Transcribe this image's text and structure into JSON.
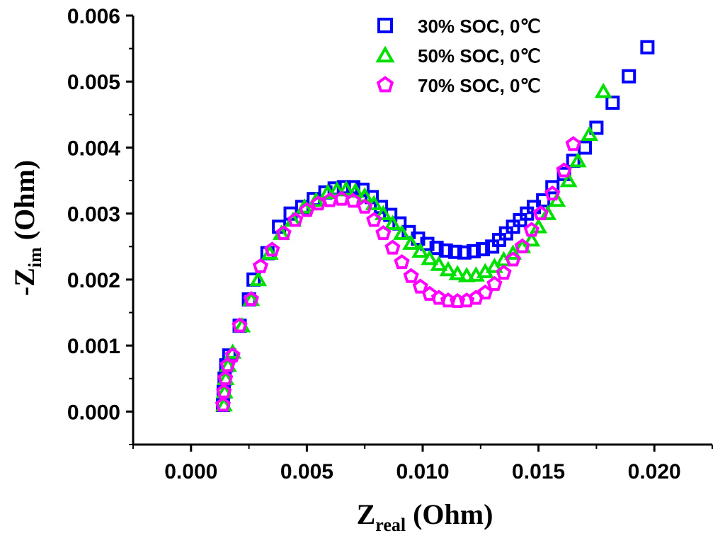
{
  "chart_data": {
    "type": "scatter",
    "title": "",
    "xlabel": {
      "main": "Z",
      "sub": "real",
      "unit": " (Ohm)"
    },
    "ylabel": {
      "prefix": "-Z",
      "sub": "im",
      "unit": " (Ohm)"
    },
    "xlim": [
      -0.0025,
      0.0225
    ],
    "ylim": [
      -0.0005,
      0.006
    ],
    "xticks": [
      "0.000",
      "0.005",
      "0.010",
      "0.015",
      "0.020"
    ],
    "yticks": [
      "0.000",
      "0.001",
      "0.002",
      "0.003",
      "0.004",
      "0.005",
      "0.006"
    ],
    "grid": false,
    "legend_position": "top-center",
    "series": [
      {
        "name": "30% SOC, 0℃",
        "marker": "square",
        "color": "#0000ff",
        "points": [
          [
            0.00138,
            0.0001
          ],
          [
            0.00141,
            0.0003
          ],
          [
            0.00145,
            0.0005
          ],
          [
            0.00152,
            0.0007
          ],
          [
            0.00165,
            0.00085
          ],
          [
            0.0021,
            0.0013
          ],
          [
            0.0025,
            0.0017
          ],
          [
            0.0027,
            0.002
          ],
          [
            0.0033,
            0.0024
          ],
          [
            0.0038,
            0.0028
          ],
          [
            0.0043,
            0.003
          ],
          [
            0.0048,
            0.0031
          ],
          [
            0.0053,
            0.00322
          ],
          [
            0.0058,
            0.00332
          ],
          [
            0.0062,
            0.00338
          ],
          [
            0.0066,
            0.0034
          ],
          [
            0.007,
            0.0034
          ],
          [
            0.0074,
            0.00336
          ],
          [
            0.0078,
            0.00325
          ],
          [
            0.0082,
            0.0031
          ],
          [
            0.0086,
            0.00298
          ],
          [
            0.009,
            0.00285
          ],
          [
            0.0094,
            0.00272
          ],
          [
            0.0098,
            0.00262
          ],
          [
            0.0102,
            0.00254
          ],
          [
            0.0106,
            0.00248
          ],
          [
            0.011,
            0.00244
          ],
          [
            0.0114,
            0.00242
          ],
          [
            0.0118,
            0.00241
          ],
          [
            0.0122,
            0.00243
          ],
          [
            0.0126,
            0.00246
          ],
          [
            0.013,
            0.0025
          ],
          [
            0.0133,
            0.0026
          ],
          [
            0.0136,
            0.0027
          ],
          [
            0.0139,
            0.0028
          ],
          [
            0.0142,
            0.0029
          ],
          [
            0.0145,
            0.003
          ],
          [
            0.0148,
            0.0031
          ],
          [
            0.0152,
            0.0032
          ],
          [
            0.0156,
            0.0034
          ],
          [
            0.0161,
            0.0036
          ],
          [
            0.0165,
            0.0038
          ],
          [
            0.017,
            0.004
          ],
          [
            0.0175,
            0.0043
          ],
          [
            0.0182,
            0.00468
          ],
          [
            0.0189,
            0.00508
          ],
          [
            0.0197,
            0.00552
          ]
        ]
      },
      {
        "name": "50% SOC, 0℃",
        "marker": "triangle",
        "color": "#00e000",
        "points": [
          [
            0.00142,
            0.0001
          ],
          [
            0.00145,
            0.0003
          ],
          [
            0.0015,
            0.0005
          ],
          [
            0.0016,
            0.0007
          ],
          [
            0.0018,
            0.0009
          ],
          [
            0.0022,
            0.0013
          ],
          [
            0.0026,
            0.0017
          ],
          [
            0.0029,
            0.002
          ],
          [
            0.0034,
            0.0024
          ],
          [
            0.0039,
            0.0027
          ],
          [
            0.0044,
            0.0029
          ],
          [
            0.0049,
            0.0031
          ],
          [
            0.0054,
            0.0032
          ],
          [
            0.0059,
            0.00332
          ],
          [
            0.0063,
            0.00336
          ],
          [
            0.0067,
            0.00337
          ],
          [
            0.0071,
            0.00334
          ],
          [
            0.0075,
            0.00327
          ],
          [
            0.0079,
            0.00315
          ],
          [
            0.0083,
            0.003
          ],
          [
            0.0087,
            0.00285
          ],
          [
            0.0091,
            0.0027
          ],
          [
            0.0095,
            0.00255
          ],
          [
            0.0099,
            0.00243
          ],
          [
            0.0103,
            0.00232
          ],
          [
            0.0107,
            0.00223
          ],
          [
            0.0111,
            0.00215
          ],
          [
            0.0115,
            0.00209
          ],
          [
            0.0119,
            0.00206
          ],
          [
            0.0123,
            0.00207
          ],
          [
            0.0127,
            0.00212
          ],
          [
            0.0131,
            0.0022
          ],
          [
            0.0135,
            0.0023
          ],
          [
            0.0139,
            0.0024
          ],
          [
            0.0143,
            0.0025
          ],
          [
            0.0147,
            0.0026
          ],
          [
            0.015,
            0.0028
          ],
          [
            0.0154,
            0.003
          ],
          [
            0.0158,
            0.0032
          ],
          [
            0.0163,
            0.0035
          ],
          [
            0.0167,
            0.0038
          ],
          [
            0.0172,
            0.0042
          ],
          [
            0.0178,
            0.00485
          ]
        ]
      },
      {
        "name": "70% SOC, 0℃",
        "marker": "pentagon",
        "color": "#ff00ff",
        "points": [
          [
            0.00138,
            0.0001
          ],
          [
            0.00142,
            0.0003
          ],
          [
            0.00148,
            0.0005
          ],
          [
            0.00158,
            0.0007
          ],
          [
            0.0018,
            0.00085
          ],
          [
            0.0021,
            0.0013
          ],
          [
            0.0026,
            0.0017
          ],
          [
            0.003,
            0.0022
          ],
          [
            0.0035,
            0.00245
          ],
          [
            0.004,
            0.0027
          ],
          [
            0.0045,
            0.0029
          ],
          [
            0.005,
            0.00305
          ],
          [
            0.0055,
            0.00315
          ],
          [
            0.006,
            0.0032
          ],
          [
            0.0065,
            0.00322
          ],
          [
            0.007,
            0.00319
          ],
          [
            0.0075,
            0.0031
          ],
          [
            0.0079,
            0.0029
          ],
          [
            0.0083,
            0.0027
          ],
          [
            0.0087,
            0.00248
          ],
          [
            0.0091,
            0.00226
          ],
          [
            0.0095,
            0.00205
          ],
          [
            0.0099,
            0.00189
          ],
          [
            0.0103,
            0.00178
          ],
          [
            0.0107,
            0.00172
          ],
          [
            0.0111,
            0.00168
          ],
          [
            0.0115,
            0.00167
          ],
          [
            0.0119,
            0.00168
          ],
          [
            0.0123,
            0.00172
          ],
          [
            0.0127,
            0.0018
          ],
          [
            0.0131,
            0.00193
          ],
          [
            0.0135,
            0.0021
          ],
          [
            0.0139,
            0.0023
          ],
          [
            0.0143,
            0.0025
          ],
          [
            0.0147,
            0.00275
          ],
          [
            0.0151,
            0.003
          ],
          [
            0.0156,
            0.0033
          ],
          [
            0.0161,
            0.00365
          ],
          [
            0.0165,
            0.00405
          ]
        ]
      }
    ]
  }
}
